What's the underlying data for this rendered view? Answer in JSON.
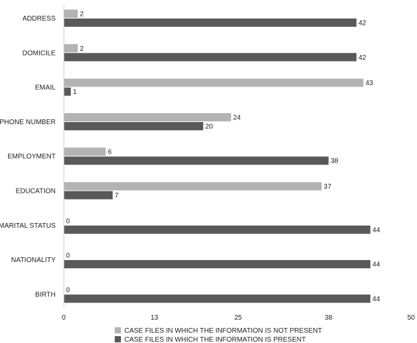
{
  "chart_data": {
    "type": "bar",
    "orientation": "horizontal",
    "categories": [
      "ADDRESS",
      "DOMICILE",
      "EMAIL",
      "PHONE NUMBER",
      "EMPLOYMENT",
      "EDUCATION",
      "MARITAL STATUS",
      "NATIONALITY",
      "BIRTH"
    ],
    "series": [
      {
        "name": "CASE FILES IN WHICH THE INFORMATION IS NOT PRESENT",
        "color": "#b3b3b3",
        "values": [
          2,
          2,
          43,
          24,
          6,
          37,
          0,
          0,
          0
        ]
      },
      {
        "name": "CASE FILES IN WHICH THE INFORMATION IS PRESENT",
        "color": "#595959",
        "values": [
          42,
          42,
          1,
          20,
          38,
          7,
          44,
          44,
          44
        ]
      }
    ],
    "xlim": [
      0,
      50
    ],
    "xticks": [
      0,
      13,
      25,
      38,
      50
    ],
    "grid": false,
    "legend_position": "bottom-left"
  }
}
